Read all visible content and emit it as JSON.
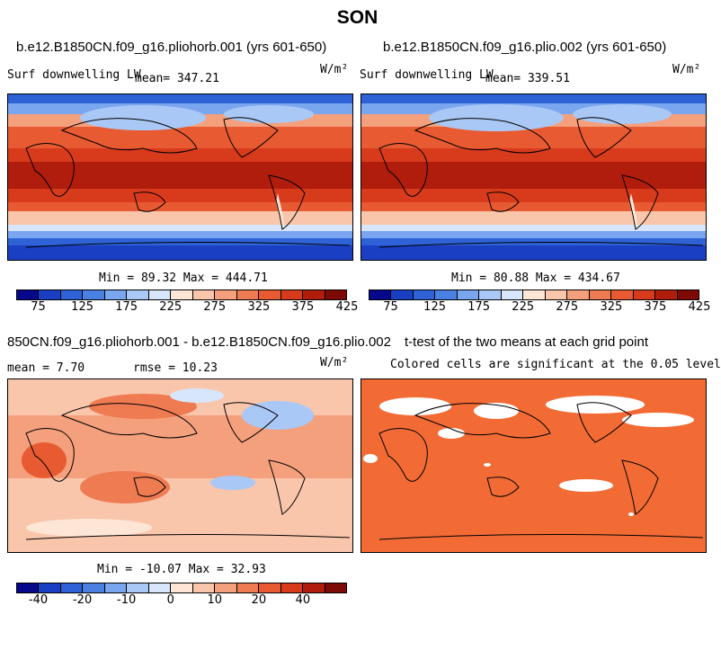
{
  "page_title": "SON",
  "panels": [
    {
      "id": "p1",
      "title": "b.e12.B1850CN.f09_g16.pliohorb.001 (yrs 601-650)",
      "variable": "Surf  downwelling LW",
      "mean_text": "mean= 347.21",
      "units": "W/m²",
      "minmax": "Min =  89.32 Max = 444.71"
    },
    {
      "id": "p2",
      "title": "b.e12.B1850CN.f09_g16.plio.002 (yrs 601-650)",
      "variable": "Surf  downwelling LW",
      "mean_text": "mean= 339.51",
      "units": "W/m²",
      "minmax": "Min =  80.88 Max = 434.67"
    },
    {
      "id": "p3",
      "title": "850CN.f09_g16.pliohorb.001 - b.e12.B1850CN.f09_g16.plio.002",
      "mean_text": "mean =   7.70",
      "rmse_text": "rmse =  10.23",
      "units": "W/m²",
      "minmax": "Min = -10.07 Max =  32.93"
    },
    {
      "id": "p4",
      "title": "t-test of the two means at each grid point",
      "subtitle": "Colored cells are significant at the 0.05 level"
    }
  ],
  "colorbars": {
    "abs": {
      "colors": [
        "#08088a",
        "#1a3fc2",
        "#2f62d6",
        "#4b80e3",
        "#7aa6ef",
        "#a9c8f5",
        "#d7e6fa",
        "#fde6d6",
        "#f9c6ac",
        "#f4a07c",
        "#ee7b52",
        "#e85a32",
        "#d83a1c",
        "#b01d0c",
        "#7e0a05"
      ],
      "labels": [
        "75",
        "125",
        "175",
        "225",
        "275",
        "325",
        "375",
        "425"
      ]
    },
    "diff": {
      "colors": [
        "#08088a",
        "#1a3fc2",
        "#2f62d6",
        "#4b80e3",
        "#7aa6ef",
        "#a9c8f5",
        "#d7e6fa",
        "#fde6d6",
        "#f9c6ac",
        "#f4a07c",
        "#ee7b52",
        "#e85a32",
        "#d83a1c",
        "#b01d0c",
        "#7e0a05"
      ],
      "labels": [
        "-40",
        "-20",
        "-10",
        "0",
        "10",
        "20",
        "40"
      ]
    }
  }
}
